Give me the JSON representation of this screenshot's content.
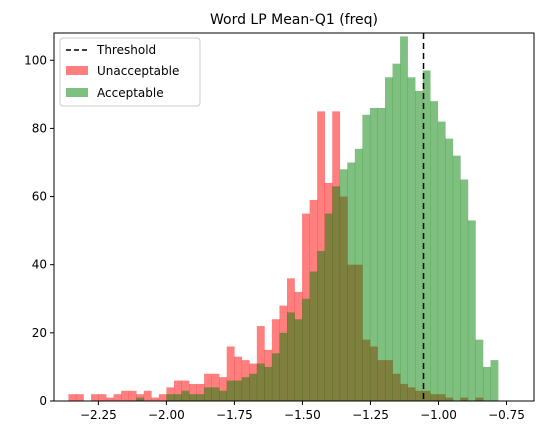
{
  "chart_data": {
    "type": "bar",
    "title": "Word LP Mean-Q1 (freq)",
    "xlabel": "",
    "ylabel": "",
    "xlim": [
      -2.413,
      -0.649
    ],
    "ylim": [
      0,
      108
    ],
    "x_ticks": [
      -2.25,
      -2.0,
      -1.75,
      -1.5,
      -1.25,
      -1.0,
      -0.75
    ],
    "x_tick_labels": [
      "−2.25",
      "−2.00",
      "−1.75",
      "−1.50",
      "−1.25",
      "−1.00",
      "−0.75"
    ],
    "y_ticks": [
      0,
      20,
      40,
      60,
      80,
      100
    ],
    "y_tick_labels": [
      "0",
      "20",
      "40",
      "60",
      "80",
      "100"
    ],
    "grid": false,
    "legend": {
      "placement": "top-left",
      "entries": [
        "Threshold",
        "Unacceptable",
        "Acceptable"
      ]
    },
    "threshold": {
      "name": "Threshold",
      "x": -1.055,
      "color": "#000000",
      "style": "dashed"
    },
    "series": [
      {
        "name": "Unacceptable",
        "color": "#ff0000",
        "alpha": 0.5,
        "bin_start": -2.36,
        "bin_width": 0.0277,
        "values": [
          2,
          2,
          0,
          2,
          2,
          1,
          2,
          3,
          3,
          2,
          3,
          1,
          2,
          4,
          6,
          6,
          5,
          5,
          8,
          8,
          7,
          16,
          13,
          12,
          11,
          22,
          15,
          24,
          28,
          36,
          32,
          55,
          59,
          85,
          64,
          85,
          60,
          40,
          40,
          18,
          16,
          12,
          12,
          8,
          5,
          4,
          3,
          3,
          2,
          2,
          1,
          0,
          1,
          0,
          1,
          0
        ]
      },
      {
        "name": "Acceptable",
        "color": "#008000",
        "alpha": 0.5,
        "bin_start": -2.36,
        "bin_width": 0.0277,
        "values": [
          0,
          0,
          0,
          0,
          0,
          0,
          0,
          0,
          0,
          1,
          0,
          0,
          0,
          2,
          2,
          3,
          2,
          2,
          4,
          4,
          3,
          6,
          6,
          7,
          8,
          11,
          10,
          14,
          20,
          26,
          24,
          30,
          38,
          44,
          55,
          63,
          68,
          70,
          74,
          84,
          86,
          86,
          95,
          99,
          107,
          95,
          91,
          97,
          88,
          82,
          77,
          72,
          65,
          53,
          18,
          10,
          12
        ]
      }
    ]
  }
}
